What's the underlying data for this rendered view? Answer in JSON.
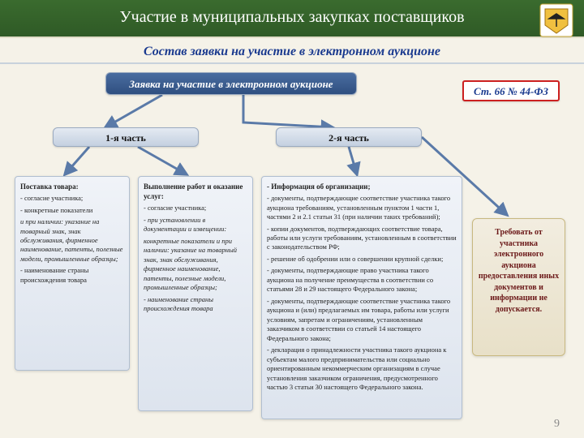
{
  "header": {
    "title": "Участие в муниципальных закупках поставщиков",
    "subtitle": "Состав заявки на участие в электронном аукционе",
    "emblem_colors": {
      "shield": "#f0c040",
      "bird": "#222",
      "bg": "#fff"
    }
  },
  "root": {
    "label": "Заявка на участие в электронном аукционе"
  },
  "law": {
    "label": "Ст. 66 № 44-ФЗ"
  },
  "parts": {
    "p1": "1-я часть",
    "p2": "2-я часть"
  },
  "columns": {
    "c1": {
      "heading": "Поставка товара:",
      "lines": [
        "- согласие участника;",
        "- конкретные показатели",
        "и при наличии: указание на товарный знак, знак обслуживания, фирменное наименование, патенты, полезные модели, промышленные образцы;",
        "- наименование страны происхождения товара"
      ],
      "italic_idx": [
        2
      ]
    },
    "c2": {
      "heading": "Выполнение работ и оказание услуг:",
      "lines": [
        "- согласие участника;",
        "- при установлении в документации и извещении:",
        "конкретные показатели и при наличии: указание на товарный знак, знак обслуживания, фирменное наименование, патенты, полезные модели, промышленные образцы;",
        "- наименование страны происхождения товара"
      ],
      "italic_idx": [
        1,
        2,
        3
      ]
    },
    "c3": {
      "heading": "- Информация об организации;",
      "lines": [
        "- документы, подтверждающие соответствие участника такого аукциона требованиям, установленным пунктом 1 части 1, частями 2 и 2.1 статьи 31 (при наличии таких требований);",
        "- копии документов, подтверждающих соответствие товара, работы или услуги требованиям, установленным в соответствии с законодательством РФ;",
        "- решение об одобрении или о совершении крупной сделки;",
        "- документы, подтверждающие право участника такого аукциона на получение преимущества в соответствии со статьями 28 и 29 настоящего Федерального закона;",
        "- документы, подтверждающие соответствие участника такого аукциона и (или) предлагаемых им товара, работы или услуги условиям, запретам и ограничениям, установленным заказчиком в соответствии со статьей 14 настоящего Федерального закона;",
        "- декларация о принадлежности участника такого аукциона к субъектам малого предпринимательства или социально ориентированным некоммерческим организациям в случае установления заказчиком ограничения, предусмотренного частью 3 статьи 30 настоящего Федерального закона."
      ],
      "italic_idx": []
    }
  },
  "right_box": {
    "text": "Требовать от участника электронного аукциона предоставления иных документов и информации не допускается."
  },
  "arrows": {
    "color": "#5a7aa8",
    "width": 3,
    "paths": [
      "M 200 38 L 130 78",
      "M 300 38 L 300 72  L 410 78",
      "M 110 102 L 80 136",
      "M 170 102 L 230 136",
      "M 430 102 L 440 136",
      "M 520 90 L 625 186"
    ]
  },
  "page_number": "9",
  "style": {
    "page_bg": "#f5f2e8",
    "title_bg_from": "#3a6b2e",
    "title_bg_to": "#2f5a26",
    "subtitle_color": "#1a3a8f",
    "node_border": "#9aaac0",
    "part_bg_from": "#e4eaf2",
    "part_bg_to": "#c4d0e0",
    "col_bg_from": "#f0f3f8",
    "col_bg_to": "#dde4ee",
    "rightbox_bg_from": "#f2ede0",
    "rightbox_bg_to": "#e8e0c8",
    "law_border": "#cc2020"
  }
}
